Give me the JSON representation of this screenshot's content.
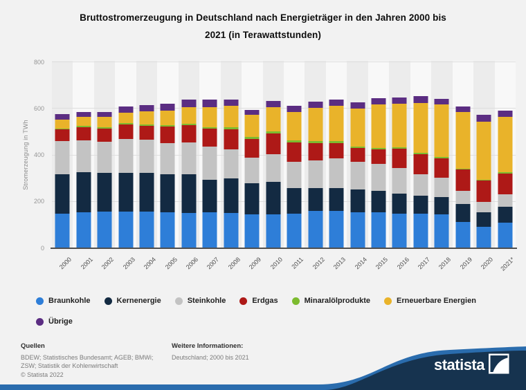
{
  "header": {
    "title_line1": "Bruttostromerzeugung in Deutschland nach Energieträger in den Jahren 2000 bis",
    "title_line2": "2021 (in Terawattstunden)"
  },
  "chart_data": {
    "type": "bar",
    "stacked": true,
    "title": "Bruttostromerzeugung in Deutschland nach Energieträger in den Jahren 2000 bis 2021 (in Terawattstunden)",
    "ylabel": "Stromerzeugung in TWh",
    "xlabel": "",
    "ylim": [
      0,
      800
    ],
    "yticks": [
      0,
      200,
      400,
      600,
      800
    ],
    "grid": true,
    "legend_position": "bottom",
    "categories": [
      "2000",
      "2001",
      "2002",
      "2003",
      "2004",
      "2005",
      "2006",
      "2007",
      "2008",
      "2009",
      "2010",
      "2011",
      "2012",
      "2013",
      "2014",
      "2015",
      "2016",
      "2017",
      "2018",
      "2019",
      "2020",
      "2021*"
    ],
    "series": [
      {
        "name": "Braunkohle",
        "color": "#2E7ED8",
        "values": [
          148.3,
          154.8,
          158.0,
          158.2,
          158.0,
          154.1,
          151.1,
          155.1,
          150.6,
          145.6,
          145.9,
          150.1,
          160.7,
          160.9,
          155.8,
          154.5,
          149.5,
          148.4,
          145.5,
          114.0,
          91.7,
          110.1
        ]
      },
      {
        "name": "Kernenergie",
        "color": "#132A42",
        "values": [
          169.6,
          171.3,
          164.8,
          165.1,
          167.1,
          163.0,
          167.4,
          140.5,
          148.8,
          134.9,
          140.6,
          108.0,
          99.5,
          97.3,
          97.1,
          91.8,
          84.6,
          76.3,
          76.0,
          75.1,
          64.3,
          69.0
        ]
      },
      {
        "name": "Steinkohle",
        "color": "#C3C3C3",
        "values": [
          143.1,
          138.4,
          134.6,
          146.5,
          141.1,
          134.1,
          137.9,
          142.0,
          124.6,
          107.9,
          117.0,
          112.4,
          116.4,
          127.3,
          118.6,
          117.7,
          112.2,
          92.9,
          82.8,
          57.5,
          42.8,
          54.2
        ]
      },
      {
        "name": "Erdgas",
        "color": "#AE1917",
        "values": [
          49.2,
          55.0,
          56.3,
          61.5,
          59.2,
          71.0,
          73.4,
          75.9,
          86.7,
          80.9,
          89.3,
          86.1,
          76.4,
          67.5,
          61.1,
          62.0,
          81.3,
          86.7,
          83.4,
          91.3,
          91.6,
          89.4
        ]
      },
      {
        "name": "Minaralölprodukte",
        "color": "#7CBB2F",
        "values": [
          5.9,
          6.0,
          6.7,
          7.3,
          7.3,
          7.2,
          6.9,
          6.2,
          9.2,
          9.5,
          8.7,
          7.2,
          7.6,
          7.2,
          5.7,
          6.2,
          5.8,
          5.6,
          5.2,
          4.7,
          4.2,
          4.5
        ]
      },
      {
        "name": "Erneuerbare Energien",
        "color": "#E9B32A",
        "values": [
          36.6,
          38.4,
          44.9,
          45.5,
          56.5,
          62.5,
          71.5,
          87.6,
          93.2,
          94.9,
          104.8,
          123.5,
          143.5,
          152.4,
          162.5,
          187.4,
          188.8,
          216.2,
          224.8,
          242.4,
          251.0,
          237.9
        ]
      },
      {
        "name": "Übrige",
        "color": "#5B2D82",
        "values": [
          24.1,
          22.5,
          21.7,
          24.4,
          26.0,
          28.9,
          31.4,
          33.3,
          27.6,
          21.3,
          26.6,
          25.4,
          25.7,
          25.8,
          25.9,
          27.3,
          27.3,
          27.4,
          25.2,
          26.0,
          27.2,
          27.3
        ]
      }
    ]
  },
  "style": {
    "stripe_dark": "#ECECEC",
    "stripe_light": "#F8F8F8",
    "grid_color": "#DEDEDE",
    "baseline_color": "#4F4F4F",
    "segment_separator": "#F1F1F1",
    "wave_navy": "#16334F",
    "wave_blue": "#2A6CAD"
  },
  "footer": {
    "sources_label": "Quellen",
    "sources_lines": [
      "BDEW; Statistisches Bundesamt; AGEB; BMWi;",
      "ZSW; Statistik der Kohlenwirtschaft",
      "© Statista 2022"
    ],
    "info_label": "Weitere Informationen:",
    "info_text": "Deutschland; 2000 bis 2021",
    "brand": "statista"
  }
}
